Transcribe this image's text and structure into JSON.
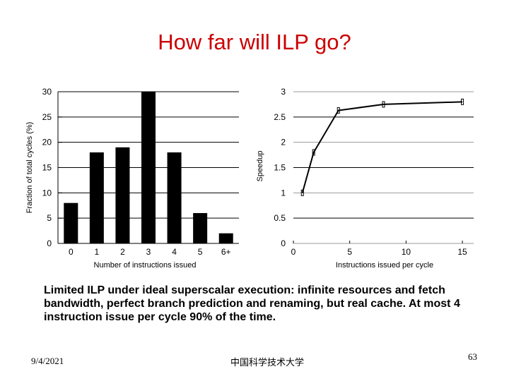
{
  "slide": {
    "title": "How far will ILP go?",
    "caption": "Limited ILP under ideal superscalar execution: infinite resources and fetch bandwidth, perfect branch prediction and renaming, but real cache. At most 4 instruction issue per cycle 90% of the time.",
    "footer_date": "9/4/2021",
    "footer_center": "中国科学技术大学",
    "page_number": "63"
  },
  "chart_data": [
    {
      "type": "bar",
      "categories": [
        "0",
        "1",
        "2",
        "3",
        "4",
        "5",
        "6+"
      ],
      "values": [
        8,
        18,
        19,
        30,
        18,
        6,
        2
      ],
      "xlabel": "Number of instructions issued",
      "ylabel": "Fraction of total cycles (%)",
      "ylim": [
        0,
        30
      ],
      "yticks": [
        "0",
        "5",
        "10",
        "15",
        "20",
        "25",
        "30"
      ],
      "grid": true,
      "bar_color": "#000000"
    },
    {
      "type": "line",
      "x": [
        0.8,
        1.8,
        4,
        8,
        15
      ],
      "y": [
        1.0,
        1.8,
        2.63,
        2.75,
        2.8
      ],
      "xlabel": "Instructions issued per cycle",
      "ylabel": "Speedup",
      "xlim": [
        0,
        16
      ],
      "ylim": [
        0,
        3
      ],
      "xticks": [
        "0",
        "5",
        "10",
        "15"
      ],
      "yticks": [
        "0",
        "0.5",
        "1",
        "1.5",
        "2",
        "2.5",
        "3"
      ],
      "grid": true
    }
  ]
}
